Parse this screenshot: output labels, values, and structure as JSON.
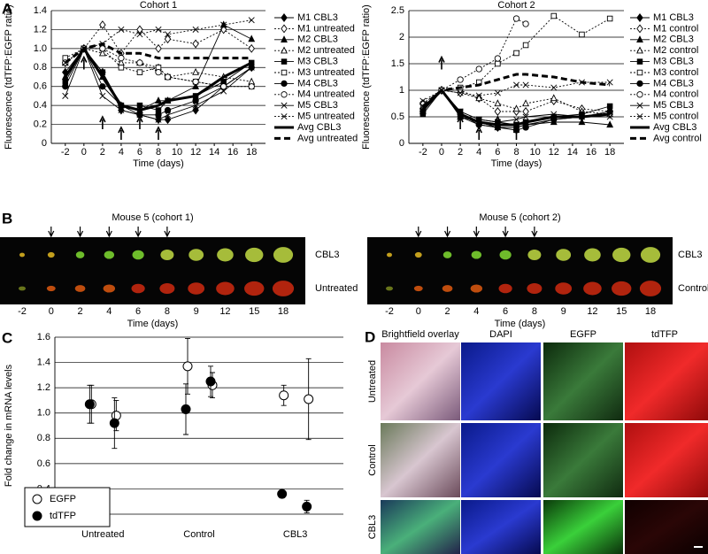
{
  "panel_labels": [
    "A",
    "B",
    "C",
    "D"
  ],
  "chart_data": [
    {
      "type": "line",
      "title": "Cohort 1",
      "xlabel": "Time (days)",
      "ylabel": "Fluorescence (tdTFP:EGFP ratio)",
      "x": [
        -2,
        0,
        2,
        4,
        6,
        8,
        9,
        12,
        15,
        18
      ],
      "xlim": [
        -3.5,
        19.5
      ],
      "xticks": [
        -2,
        0,
        2,
        4,
        6,
        8,
        10,
        12,
        14,
        16,
        18
      ],
      "ylim": [
        0,
        1.4
      ],
      "yticks": [
        0,
        0.2,
        0.4,
        0.6,
        0.8,
        {
          "value": 1,
          "label": "1.0"
        },
        1.2,
        1.4
      ],
      "grid": true,
      "legend": "right",
      "treatment_days": [
        0,
        2,
        4,
        6,
        8
      ],
      "series": [
        {
          "name": "M1 CBL3",
          "color": "#000000",
          "marker": "diamond",
          "filled": true,
          "line_style": "solid",
          "values": [
            0.75,
            1.0,
            0.75,
            0.35,
            0.3,
            0.25,
            0.25,
            0.35,
            0.6,
            0.8
          ]
        },
        {
          "name": "M1 untreated",
          "color": "#000000",
          "marker": "diamond",
          "filled": false,
          "line_style": "dotted",
          "values": [
            0.85,
            1.0,
            1.25,
            0.95,
            1.2,
            1.0,
            1.1,
            1.05,
            1.2,
            1.0
          ]
        },
        {
          "name": "M2 CBL3",
          "color": "#000000",
          "marker": "triangle",
          "filled": true,
          "line_style": "solid",
          "values": [
            0.7,
            1.0,
            0.7,
            0.4,
            0.35,
            0.45,
            0.45,
            0.6,
            1.25,
            1.1
          ]
        },
        {
          "name": "M2 untreated",
          "color": "#000000",
          "marker": "triangle",
          "filled": false,
          "line_style": "dotted",
          "values": [
            0.85,
            1.0,
            0.95,
            0.85,
            0.85,
            0.8,
            0.7,
            0.75,
            0.7,
            0.65
          ]
        },
        {
          "name": "M3 CBL3",
          "color": "#000000",
          "marker": "square",
          "filled": true,
          "line_style": "solid",
          "values": [
            0.65,
            1.0,
            0.75,
            0.4,
            0.4,
            0.35,
            0.45,
            0.5,
            0.65,
            0.85
          ]
        },
        {
          "name": "M3 untreated",
          "color": "#000000",
          "marker": "square",
          "filled": false,
          "line_style": "dotted",
          "values": [
            0.9,
            1.0,
            1.0,
            0.8,
            0.75,
            0.8,
            0.7,
            0.65,
            0.6,
            0.6
          ]
        },
        {
          "name": "M4 CBL3",
          "color": "#000000",
          "marker": "circle",
          "filled": true,
          "line_style": "solid",
          "values": [
            0.6,
            1.0,
            0.6,
            0.4,
            0.3,
            0.3,
            0.35,
            0.45,
            0.6,
            0.8
          ]
        },
        {
          "name": "M4 untreated",
          "color": "#000000",
          "marker": "circle",
          "filled": false,
          "line_style": "dotted",
          "values": [
            0.85,
            1.0,
            1.0,
            0.9,
            0.85,
            0.75,
            0.7,
            0.65,
            0.6,
            0.6
          ]
        },
        {
          "name": "M5 CBL3",
          "color": "#000000",
          "marker": "x",
          "filled": true,
          "line_style": "solid",
          "values": [
            0.5,
            1.0,
            0.5,
            0.35,
            0.3,
            0.25,
            0.3,
            0.4,
            0.55,
            0.8
          ]
        },
        {
          "name": "M5 untreated",
          "color": "#000000",
          "marker": "x",
          "filled": false,
          "line_style": "dotted",
          "values": [
            0.85,
            1.0,
            1.05,
            1.2,
            1.15,
            1.2,
            1.15,
            1.2,
            1.25,
            1.3
          ]
        },
        {
          "name": "Avg CBL3",
          "color": "#000000",
          "marker": "none",
          "filled": true,
          "line_style": "solid",
          "width": 3,
          "values": [
            0.7,
            1.0,
            0.7,
            0.4,
            0.35,
            0.4,
            0.45,
            0.5,
            0.7,
            0.85
          ]
        },
        {
          "name": "Avg untreated",
          "color": "#000000",
          "marker": "none",
          "filled": true,
          "line_style": "dashed",
          "width": 3,
          "values": [
            0.85,
            1.0,
            1.05,
            0.95,
            0.95,
            0.9,
            0.9,
            0.9,
            0.9,
            0.9
          ]
        }
      ]
    },
    {
      "type": "line",
      "title": "Cohort 2",
      "xlabel": "Time (days)",
      "ylabel": "Fluorescence (tdTFP:EGFP ratio)",
      "x": [
        -2,
        0,
        2,
        4,
        6,
        8,
        9,
        12,
        15,
        18
      ],
      "xlim": [
        -3.5,
        19.5
      ],
      "xticks": [
        -2,
        0,
        2,
        4,
        6,
        8,
        10,
        12,
        14,
        16,
        18
      ],
      "ylim": [
        0,
        2.5
      ],
      "yticks": [
        0,
        0.5,
        1,
        1.5,
        2,
        2.5
      ],
      "grid": true,
      "legend": "right",
      "treatment_days": [
        0,
        2,
        4,
        6,
        8
      ],
      "series": [
        {
          "name": "M1 CBL3",
          "color": "#000000",
          "marker": "diamond",
          "filled": true,
          "line_style": "solid",
          "values": [
            0.65,
            1.0,
            0.5,
            0.35,
            0.3,
            0.3,
            0.35,
            0.45,
            0.5,
            0.55
          ]
        },
        {
          "name": "M1 control",
          "color": "#000000",
          "marker": "diamond",
          "filled": false,
          "line_style": "dotted",
          "values": [
            0.75,
            1.0,
            0.95,
            0.85,
            0.6,
            0.6,
            0.6,
            0.8,
            0.65,
            0.6
          ]
        },
        {
          "name": "M2 CBL3",
          "color": "#000000",
          "marker": "triangle",
          "filled": true,
          "line_style": "solid",
          "values": [
            0.6,
            1.0,
            0.5,
            0.4,
            0.3,
            0.3,
            0.35,
            0.4,
            0.4,
            0.35
          ]
        },
        {
          "name": "M2 control",
          "color": "#000000",
          "marker": "triangle",
          "filled": false,
          "line_style": "dotted",
          "values": [
            0.7,
            1.0,
            1.0,
            0.85,
            0.75,
            0.65,
            0.75,
            0.85,
            0.6,
            0.55
          ]
        },
        {
          "name": "M3 CBL3",
          "color": "#000000",
          "marker": "square",
          "filled": true,
          "line_style": "solid",
          "values": [
            0.55,
            1.0,
            0.6,
            0.45,
            0.4,
            0.35,
            0.4,
            0.5,
            0.55,
            0.7
          ]
        },
        {
          "name": "M3 control",
          "color": "#000000",
          "marker": "square",
          "filled": false,
          "line_style": "dotted",
          "values": [
            0.6,
            1.0,
            1.05,
            1.15,
            1.5,
            1.7,
            1.85,
            2.4,
            2.05,
            2.35
          ]
        },
        {
          "name": "M4 CBL3",
          "color": "#000000",
          "marker": "circle",
          "filled": true,
          "line_style": "solid",
          "values": [
            0.6,
            1.0,
            0.55,
            0.35,
            0.3,
            0.25,
            0.3,
            0.45,
            0.5,
            0.6
          ]
        },
        {
          "name": "M4 control",
          "color": "#000000",
          "marker": "circle",
          "filled": false,
          "line_style": "dotted",
          "values": [
            0.75,
            1.0,
            1.2,
            1.4,
            1.6,
            2.35,
            2.25,
            null,
            null,
            null
          ]
        },
        {
          "name": "M5 CBL3",
          "color": "#000000",
          "marker": "x",
          "filled": true,
          "line_style": "solid",
          "values": [
            0.7,
            1.0,
            0.6,
            0.45,
            0.4,
            0.45,
            0.5,
            0.55,
            0.5,
            0.5
          ]
        },
        {
          "name": "M5 control",
          "color": "#000000",
          "marker": "x",
          "filled": false,
          "line_style": "dotted",
          "values": [
            0.8,
            1.0,
            0.95,
            0.9,
            0.95,
            1.1,
            1.1,
            1.05,
            1.15,
            1.15
          ]
        },
        {
          "name": "Avg CBL3",
          "color": "#000000",
          "marker": "none",
          "filled": true,
          "line_style": "solid",
          "width": 3,
          "values": [
            0.65,
            1.0,
            0.55,
            0.4,
            0.35,
            0.35,
            0.4,
            0.5,
            0.5,
            0.55
          ]
        },
        {
          "name": "Avg control",
          "color": "#000000",
          "marker": "none",
          "filled": true,
          "line_style": "dashed",
          "width": 3,
          "values": [
            0.7,
            1.0,
            1.05,
            1.1,
            1.2,
            1.3,
            1.3,
            1.25,
            1.15,
            1.1
          ]
        }
      ]
    },
    {
      "type": "errorbar",
      "ylabel": "Fold change in mRNA levels",
      "categories": [
        "Untreated",
        null,
        "Control",
        null,
        "CBL3",
        null
      ],
      "ylim": [
        0.2,
        1.6
      ],
      "yticks": [
        0.2,
        0.4,
        0.6,
        0.8,
        {
          "value": 1,
          "label": "1.0"
        },
        1.2,
        1.4,
        1.6
      ],
      "grid": true,
      "legend": "lower left",
      "series": [
        {
          "name": "EGFP",
          "color": "#000000",
          "filled": false,
          "values": [
            1.07,
            0.98,
            1.37,
            1.22,
            1.14,
            1.11
          ],
          "errors": [
            0.15,
            0.12,
            0.22,
            0.1,
            0.08,
            0.32
          ]
        },
        {
          "name": "tdTFP",
          "color": "#000000",
          "filled": true,
          "values": [
            1.07,
            0.92,
            1.03,
            1.25,
            0.36,
            0.26
          ],
          "errors": [
            0.15,
            0.2,
            0.2,
            0.12,
            0.03,
            0.05
          ]
        }
      ]
    }
  ],
  "imaging_strips": [
    {
      "title": "Mouse 5 (cohort 1)",
      "rows": [
        "CBL3",
        "Untreated"
      ],
      "days": [
        -2,
        0,
        2,
        4,
        6,
        8,
        9,
        12,
        15,
        18
      ],
      "xlabel": "Time (days)"
    },
    {
      "title": "Mouse 5 (cohort 2)",
      "rows": [
        "CBL3",
        "Control"
      ],
      "days": [
        -2,
        0,
        2,
        4,
        6,
        8,
        9,
        12,
        15,
        18
      ],
      "xlabel": "Time (days)"
    }
  ],
  "micrographs": {
    "columns": [
      "Brightfield overlay",
      "DAPI",
      "EGFP",
      "tdTFP"
    ],
    "rows": [
      "Untreated",
      "Control",
      "CBL3"
    ]
  }
}
